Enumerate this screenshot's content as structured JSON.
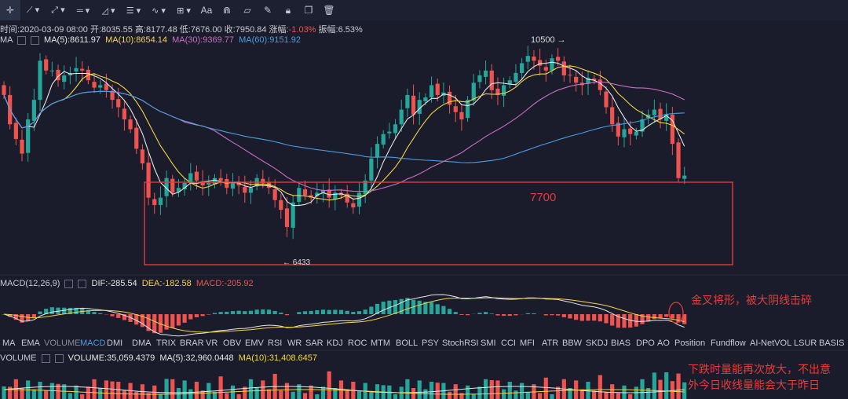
{
  "toolbar": {
    "items": [
      "crosshair-icon",
      "line-icon",
      "ray-icon",
      "horizontal-line-icon",
      "triangle-icon",
      "parallel-icon",
      "wave-icon",
      "rect-icon",
      "Aa",
      "magnet-icon",
      "ruler-icon",
      "pen-icon",
      "lock-icon",
      "copy-icon",
      "trash-icon"
    ],
    "text_label": "Aa"
  },
  "info": {
    "time_label": "时间:",
    "time": "2020-03-09 08:00",
    "open_label": "开:",
    "open": "8035.55",
    "high_label": "高:",
    "high": "8177.48",
    "low_label": "低:",
    "low": "7676.00",
    "close_label": "收:",
    "close": "7950.84",
    "change_label": "涨幅:",
    "change": "-1.03%",
    "amp_label": "振幅:",
    "amp": "6.53%"
  },
  "ma": {
    "label": "MA",
    "ma5": "MA(5):8611.97",
    "ma10": "MA(10):8654.14",
    "ma30": "MA(30):9369.77",
    "ma60": "MA(60):9151.92"
  },
  "annotations": {
    "high_label": "10500",
    "low_label": "6433",
    "box_label": "7700",
    "macd_note": "金叉将形，被大阴线击碎",
    "vol_note_1": "下跌时量能再次放大，不出意",
    "vol_note_2": "外今日收线量能会大于昨日"
  },
  "macd": {
    "label": "MACD(12,26,9)",
    "dif": "DIF:-285.54",
    "dea": "DEA:-182.58",
    "macd": "MACD:-205.92"
  },
  "indicator_tabs": [
    "MA",
    "EMA",
    "VOLUME",
    "MACD",
    "DMI",
    "DMA",
    "TRIX",
    "BRAR",
    "VR",
    "OBV",
    "EMV",
    "RSI",
    "WR",
    "SAR",
    "KDJ",
    "ROC",
    "MTM",
    "BOLL",
    "PSY",
    "StochRSI",
    "SMI",
    "CCI",
    "MFI",
    "ATR",
    "BBW",
    "SKDJ",
    "BIAS",
    "DPO",
    "AO",
    "Position",
    "Fundflow",
    "AI-NetVOL",
    "LSUR",
    "BASIS"
  ],
  "active_indicator": "MACD",
  "volume": {
    "label": "VOLUME",
    "vol": "VOLUME:35,059.4379",
    "ma5": "MA(5):32,960.0448",
    "ma10": "MA(10):31,408.6457"
  },
  "colors": {
    "up": "#26a69a",
    "down": "#ef5350",
    "ma5": "#e6e6e6",
    "ma10": "#f5d547",
    "ma30": "#c86fc2",
    "ma60": "#4a9ee0",
    "accent": "#4a9ee0",
    "box": "#e33b3b"
  },
  "chart_data": {
    "type": "candlestick",
    "price_high_marker": 10500,
    "price_low_marker": 6433,
    "support_level": 7700,
    "close_series": [
      9600,
      9000,
      8700,
      8400,
      9100,
      9500,
      10300,
      10100,
      10100,
      9900,
      10000,
      10050,
      10150,
      10100,
      9900,
      9750,
      9800,
      9700,
      9500,
      9350,
      9100,
      8900,
      8500,
      8200,
      7500,
      7350,
      7500,
      7900,
      7600,
      7700,
      7800,
      8000,
      7850,
      7750,
      7800,
      7900,
      7850,
      7700,
      7800,
      7750,
      7600,
      7700,
      7900,
      7800,
      7700,
      7450,
      7250,
      6900,
      7400,
      7700,
      7550,
      7500,
      7600,
      7650,
      7500,
      7600,
      7550,
      7400,
      7300,
      7600,
      7850,
      8300,
      8600,
      8800,
      8850,
      9000,
      9300,
      9600,
      9200,
      9500,
      9550,
      9800,
      9600,
      9650,
      9400,
      9250,
      9100,
      9500,
      9850,
      10000,
      10100,
      9700,
      9600,
      9800,
      9900,
      10050,
      10250,
      10400,
      10300,
      10200,
      10100,
      10350,
      10300,
      10000,
      10000,
      9850,
      9800,
      9950,
      9900,
      9700,
      9350,
      9000,
      8750,
      8900,
      8800,
      8850,
      9100,
      9200,
      9300,
      9100,
      9200,
      8600,
      7900,
      7950
    ]
  }
}
